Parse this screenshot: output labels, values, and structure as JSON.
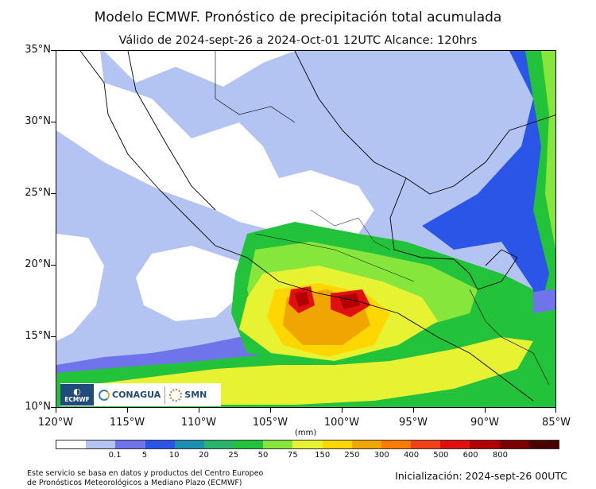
{
  "title": "Modelo ECMWF. Pronóstico de precipitación total acumulada",
  "subtitle": "Válido de 2024-sept-26 a 2024-Oct-01 12UTC   Alcance: 120hrs",
  "lat_labels": [
    "35°N",
    "30°N",
    "25°N",
    "20°N",
    "15°N",
    "10°N"
  ],
  "lon_labels": [
    "120°W",
    "115°W",
    "110°W",
    "105°W",
    "100°W",
    "95°W",
    "90°W",
    "85°W"
  ],
  "units": "(mm)",
  "colorbar": {
    "colors": [
      "#ffffff",
      "#b3c4f2",
      "#6f74ea",
      "#2a55e6",
      "#1e8fb0",
      "#2ab36a",
      "#22c23a",
      "#86e63b",
      "#e6f232",
      "#ffd700",
      "#f0a500",
      "#ff7a00",
      "#f2401a",
      "#e01010",
      "#b00000",
      "#7a0000",
      "#4a0000"
    ],
    "labels": [
      "0.1",
      "5",
      "10",
      "20",
      "25",
      "50",
      "75",
      "150",
      "250",
      "300",
      "400",
      "500",
      "600",
      "800"
    ]
  },
  "logos": {
    "ecmwf_text": "ECMWF",
    "conagua_text": "CONAGUA",
    "smn_text": "SMN"
  },
  "footer_left_line1": "Este servicio se basa en datos y productos del Centro Europeo",
  "footer_left_line2": "de Pronósticos Meteorológicos a Mediano Plazo (ECMWF)",
  "footer_right": "Inicialización: 2024-sept-26 00UTC"
}
